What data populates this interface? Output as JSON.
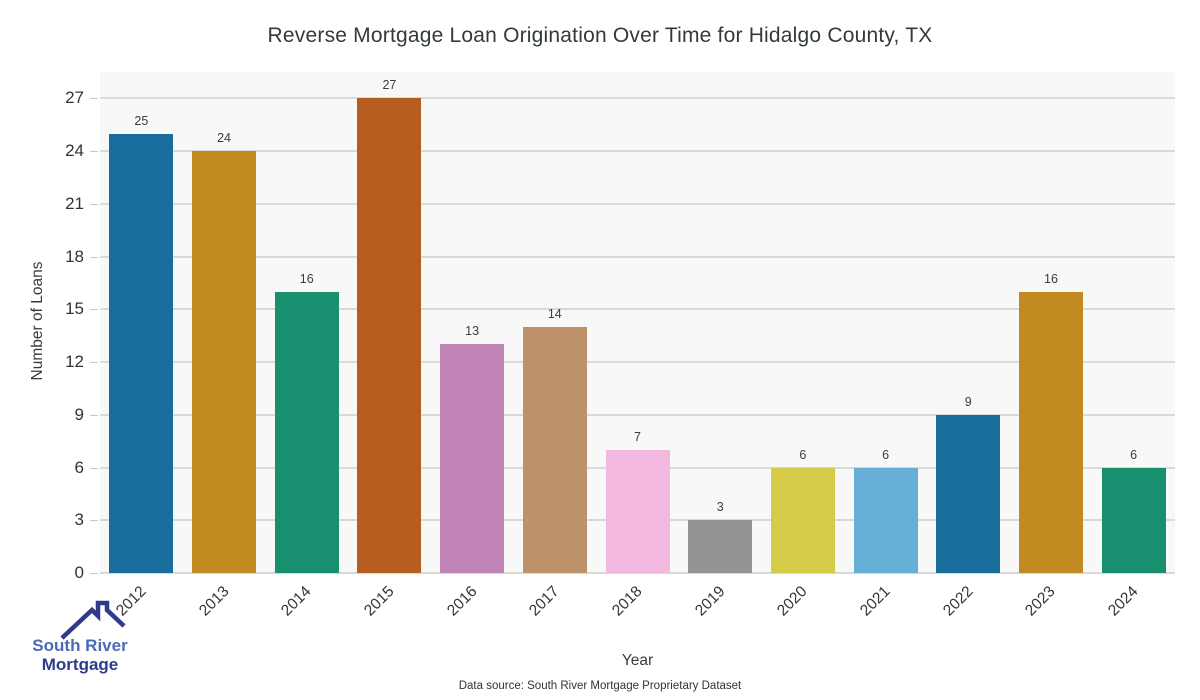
{
  "chart_data": {
    "type": "bar",
    "title": "Reverse Mortgage Loan Origination Over Time for Hidalgo County, TX",
    "xlabel": "Year",
    "ylabel": "Number of Loans",
    "categories": [
      "2012",
      "2013",
      "2014",
      "2015",
      "2016",
      "2017",
      "2018",
      "2019",
      "2020",
      "2021",
      "2022",
      "2023",
      "2024"
    ],
    "values": [
      25,
      24,
      16,
      27,
      13,
      14,
      7,
      3,
      6,
      6,
      9,
      16,
      6
    ],
    "bar_colors": [
      "#176e9d",
      "#c28a21",
      "#188f6e",
      "#b65e1e",
      "#c083b6",
      "#bd926b",
      "#f3b8e0",
      "#949494",
      "#d4cc48",
      "#66afd7",
      "#176e9d",
      "#c28a21",
      "#188f6e"
    ],
    "yticks": [
      0,
      3,
      6,
      9,
      12,
      15,
      18,
      21,
      24,
      27
    ],
    "ylim": [
      0,
      28.5
    ],
    "grid": true,
    "legend": "none",
    "value_labels": true,
    "plot_background": "#f8f8f8",
    "gridline_color": "#d9d9d9"
  },
  "footer": {
    "source_text": "Data source: South River Mortgage Proprietary Dataset"
  },
  "logo": {
    "line1": "South River",
    "line2": "Mortgage",
    "accent_color": "#4a6ab8",
    "navy_color": "#2e3a8c"
  }
}
